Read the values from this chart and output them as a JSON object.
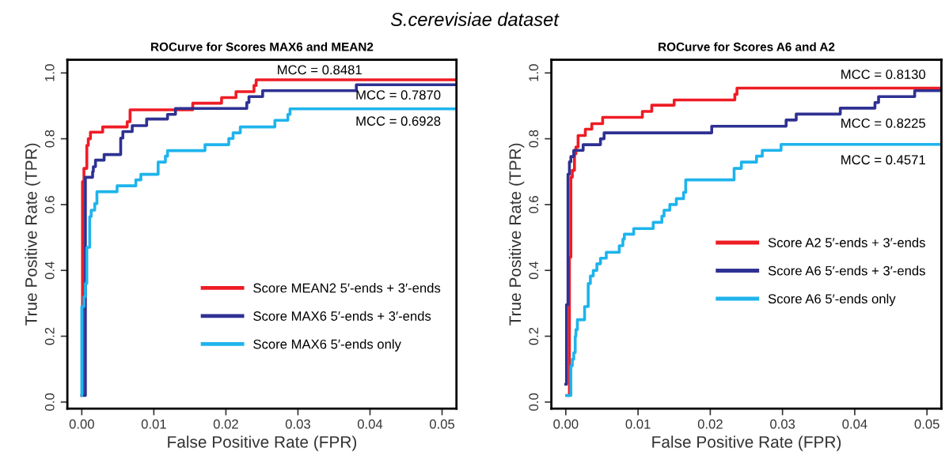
{
  "chart_data": [
    {
      "type": "step",
      "title": "ROCurve for Scores MAX6 and MEAN2",
      "xlabel": "False Positive Rate (FPR)",
      "ylabel": "True Positive Rate (TPR)",
      "annotations": [
        "S.cerevisiae dataset",
        "MCC = 0.8481",
        "MCC = 0.7870",
        "MCC = 0.6928"
      ],
      "xlim": [
        -0.002,
        0.052
      ],
      "ylim": [
        -0.02,
        1.04
      ],
      "xticks": [
        {
          "value": 0,
          "label": "0.00"
        },
        {
          "value": 0.01,
          "label": "0.01"
        },
        {
          "value": 0.02,
          "label": "0.02"
        },
        {
          "value": 0.03,
          "label": "0.03"
        },
        {
          "value": 0.04,
          "label": "0.04"
        },
        {
          "value": 0.05,
          "label": "0.05"
        }
      ],
      "yticks": [
        {
          "value": 0,
          "label": "0.0"
        },
        {
          "value": 0.2,
          "label": "0.2"
        },
        {
          "value": 0.4,
          "label": "0.4"
        },
        {
          "value": 0.6,
          "label": "0.6"
        },
        {
          "value": 0.8,
          "label": "0.8"
        },
        {
          "value": 1,
          "label": "1.0"
        }
      ],
      "grid": false,
      "legend": "bottom right",
      "marker": "none",
      "line_style": "solid",
      "series": [
        {
          "name": "Score MEAN2 5′-ends + 3′-ends",
          "color": "#ee1c25",
          "x": [
            0,
            0.0001,
            0.0003,
            0.0007,
            0.0009,
            0.0012,
            0.0029,
            0.0063,
            0.0067,
            0.0154,
            0.0194,
            0.0214,
            0.0239,
            0.0242,
            0.052
          ],
          "values": [
            0.02,
            0.67,
            0.71,
            0.78,
            0.8,
            0.82,
            0.836,
            0.852,
            0.888,
            0.908,
            0.925,
            0.943,
            0.962,
            0.979,
            0.979
          ]
        },
        {
          "name": "Score MAX6 5′-ends + 3′-ends",
          "color": "#2e3192",
          "x": [
            0.0003,
            0.0005,
            0.0015,
            0.0016,
            0.0019,
            0.0031,
            0.0054,
            0.0057,
            0.007,
            0.009,
            0.0119,
            0.013,
            0.0229,
            0.0232,
            0.0251,
            0.0381,
            0.052
          ],
          "values": [
            0.02,
            0.683,
            0.7,
            0.715,
            0.735,
            0.752,
            0.802,
            0.822,
            0.84,
            0.86,
            0.874,
            0.892,
            0.91,
            0.928,
            0.946,
            0.964,
            0.964
          ]
        },
        {
          "name": "Score MAX6 5′-ends only",
          "color": "#1eb4ec",
          "x": [
            0,
            0,
            0.0003,
            0.0005,
            0.0007,
            0.0011,
            0.0013,
            0.0018,
            0.0021,
            0.0049,
            0.0075,
            0.0082,
            0.0106,
            0.0116,
            0.0119,
            0.0171,
            0.0204,
            0.021,
            0.022,
            0.0268,
            0.0286,
            0.0289,
            0.052
          ],
          "values": [
            0.02,
            0.29,
            0.32,
            0.36,
            0.47,
            0.563,
            0.583,
            0.603,
            0.639,
            0.657,
            0.675,
            0.692,
            0.729,
            0.747,
            0.764,
            0.782,
            0.801,
            0.818,
            0.836,
            0.856,
            0.874,
            0.891,
            0.891
          ]
        }
      ]
    },
    {
      "type": "step",
      "title": "ROCurve for Scores A6 and A2",
      "xlabel": "False Positive Rate (FPR)",
      "ylabel": "True Positive Rate (TPR)",
      "annotations": [
        "MCC = 0.8130",
        "MCC = 0.8225",
        "MCC = 0.4571"
      ],
      "xlim": [
        -0.002,
        0.052
      ],
      "ylim": [
        -0.02,
        1.04
      ],
      "xticks": [
        {
          "value": 0,
          "label": "0.00"
        },
        {
          "value": 0.01,
          "label": "0.01"
        },
        {
          "value": 0.02,
          "label": "0.02"
        },
        {
          "value": 0.03,
          "label": "0.03"
        },
        {
          "value": 0.04,
          "label": "0.04"
        },
        {
          "value": 0.05,
          "label": "0.05"
        }
      ],
      "yticks": [
        {
          "value": 0,
          "label": "0.0"
        },
        {
          "value": 0.2,
          "label": "0.2"
        },
        {
          "value": 0.4,
          "label": "0.4"
        },
        {
          "value": 0.6,
          "label": "0.6"
        },
        {
          "value": 0.8,
          "label": "0.8"
        },
        {
          "value": 1,
          "label": "1.0"
        }
      ],
      "grid": false,
      "legend": "bottom right",
      "marker": "none",
      "line_style": "solid",
      "series": [
        {
          "name": "Score A2 5′-ends + 3′-ends",
          "color": "#ee1c25",
          "x": [
            0.0003,
            0.0005,
            0.0007,
            0.0009,
            0.0012,
            0.0014,
            0.0017,
            0.0027,
            0.0036,
            0.0051,
            0.0106,
            0.0119,
            0.015,
            0.0234,
            0.0237,
            0.052
          ],
          "values": [
            0.02,
            0.44,
            0.683,
            0.704,
            0.754,
            0.775,
            0.81,
            0.829,
            0.846,
            0.865,
            0.883,
            0.902,
            0.918,
            0.935,
            0.954,
            0.954
          ]
        },
        {
          "name": "Score A6 5′-ends + 3′-ends",
          "color": "#2e3192",
          "x": [
            0,
            0.0001,
            0.0003,
            0.0005,
            0.0007,
            0.0011,
            0.0024,
            0.0048,
            0.0053,
            0.0202,
            0.0305,
            0.0319,
            0.038,
            0.0428,
            0.0433,
            0.0483,
            0.052
          ],
          "values": [
            0.054,
            0.296,
            0.692,
            0.73,
            0.746,
            0.765,
            0.782,
            0.8,
            0.818,
            0.838,
            0.857,
            0.875,
            0.893,
            0.91,
            0.928,
            0.946,
            0.946
          ]
        },
        {
          "name": "Score A6 5′-ends only",
          "color": "#1eb4ec",
          "x": [
            0.0001,
            0.0007,
            0.0009,
            0.0011,
            0.0013,
            0.0014,
            0.0016,
            0.0026,
            0.0031,
            0.0034,
            0.0038,
            0.0043,
            0.0048,
            0.0056,
            0.0074,
            0.0079,
            0.0081,
            0.0094,
            0.0121,
            0.0133,
            0.0136,
            0.0144,
            0.0153,
            0.0163,
            0.0166,
            0.0233,
            0.0243,
            0.0264,
            0.0272,
            0.0298,
            0.052
          ],
          "values": [
            0.02,
            0.11,
            0.13,
            0.15,
            0.2,
            0.22,
            0.25,
            0.29,
            0.36,
            0.383,
            0.4,
            0.42,
            0.437,
            0.455,
            0.475,
            0.495,
            0.51,
            0.527,
            0.546,
            0.565,
            0.583,
            0.6,
            0.618,
            0.637,
            0.675,
            0.71,
            0.729,
            0.747,
            0.765,
            0.783,
            0.783
          ]
        }
      ]
    }
  ]
}
